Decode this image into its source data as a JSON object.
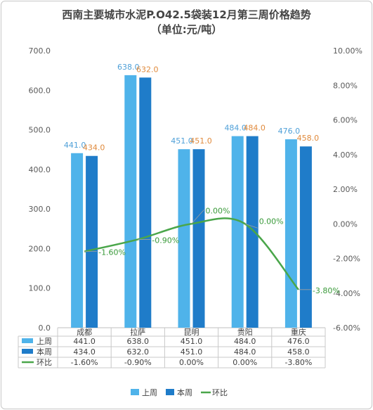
{
  "chart_data": {
    "type": "bar",
    "title": "西南主要城市水泥P.O42.5袋装12月第三周价格趋势",
    "subtitle": "（单位:元/吨）",
    "categories": [
      "成都",
      "拉萨",
      "昆明",
      "贵阳",
      "重庆"
    ],
    "series": [
      {
        "name": "上周",
        "type": "bar",
        "axis": "left",
        "color": "#4fb3ea",
        "label_color": "#4fa0d8",
        "values": [
          441.0,
          638.0,
          451.0,
          484.0,
          476.0
        ],
        "labels": [
          "441.0",
          "638.0",
          "451.0",
          "484.0",
          "476.0"
        ]
      },
      {
        "name": "本周",
        "type": "bar",
        "axis": "left",
        "color": "#1f7cc9",
        "label_color": "#e08a3c",
        "values": [
          434.0,
          632.0,
          451.0,
          484.0,
          458.0
        ],
        "labels": [
          "434.0",
          "632.0",
          "451.0",
          "484.0",
          "458.0"
        ]
      },
      {
        "name": "环比",
        "type": "line",
        "axis": "right",
        "color": "#4aa64a",
        "label_color": "#3a9a3a",
        "values": [
          -1.6,
          -0.9,
          0.0,
          0.0,
          -3.8
        ],
        "labels": [
          "-1.60%",
          "-0.90%",
          "0.00%",
          "0.00%",
          "-3.80%"
        ]
      }
    ],
    "y_left": {
      "min": 0,
      "max": 700,
      "step": 100,
      "ticks": [
        "0.0",
        "100.0",
        "200.0",
        "300.0",
        "400.0",
        "500.0",
        "600.0",
        "700.0"
      ]
    },
    "y_right": {
      "min": -6,
      "max": 10,
      "step": 2,
      "ticks": [
        "-6.00%",
        "-4.00%",
        "-2.00%",
        "0.00%",
        "2.00%",
        "4.00%",
        "6.00%",
        "8.00%",
        "10.00%"
      ]
    },
    "grid": false,
    "legend": "bottom",
    "data_table": true,
    "watermark_color": "#3a7fd0"
  }
}
